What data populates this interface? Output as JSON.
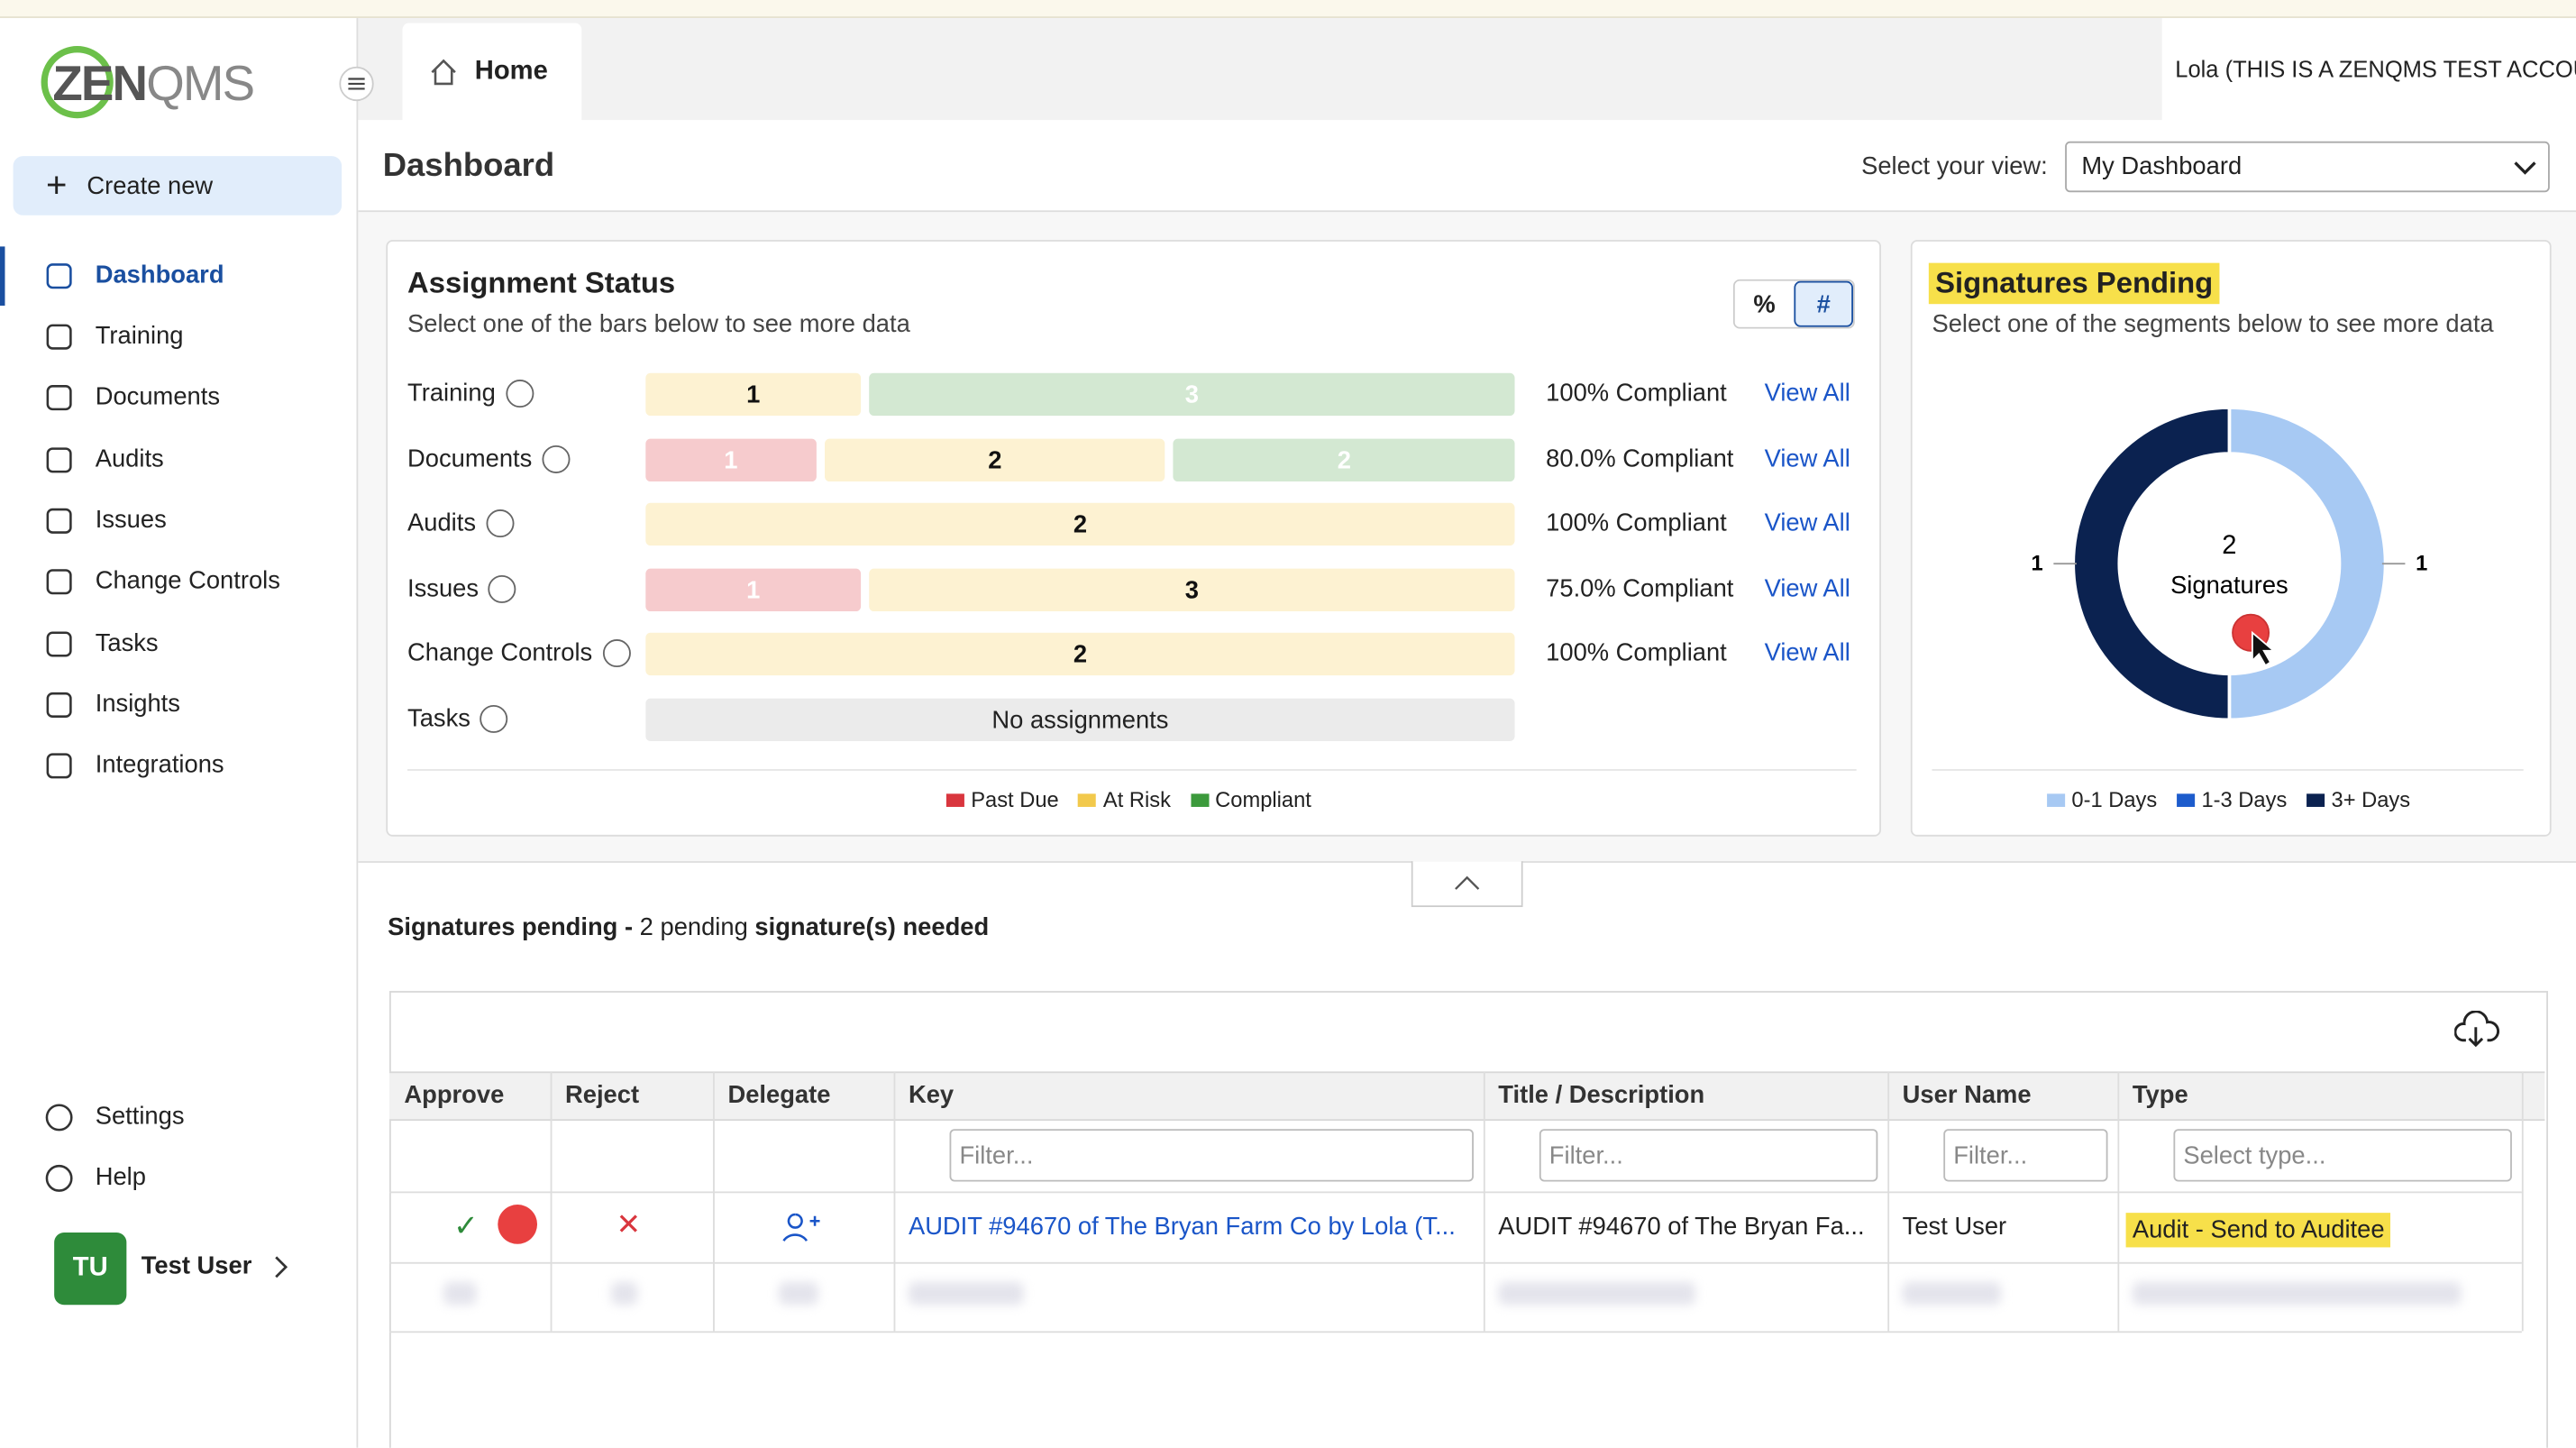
{
  "header": {
    "logo_left": "ZEN",
    "logo_right": "QMS",
    "tab": "Home",
    "account": "Lola (THIS IS A ZENQMS TEST ACCOUNT)"
  },
  "sidebar": {
    "create": "Create new",
    "nav": [
      "Dashboard",
      "Training",
      "Documents",
      "Audits",
      "Issues",
      "Change Controls",
      "Tasks",
      "Insights",
      "Integrations"
    ],
    "active": 0,
    "footer": [
      "Settings",
      "Help"
    ],
    "user": {
      "initials": "TU",
      "name": "Test User"
    }
  },
  "page": {
    "title": "Dashboard",
    "view_label": "Select your view:",
    "view": "My Dashboard"
  },
  "assignment_status": {
    "title": "Assignment Status",
    "subtitle": "Select one of the bars below to see more data",
    "toggle": [
      "%",
      "#"
    ],
    "toggle_active": 1,
    "link": "View All",
    "legend": [
      {
        "name": "Past Due",
        "color": "#d9363e",
        "fill": "#f6cbcd",
        "text": "#ffffff"
      },
      {
        "name": "At Risk",
        "color": "#f2c94c",
        "fill": "#fdf2d2",
        "text": "#111111"
      },
      {
        "name": "Compliant",
        "color": "#3c9a3c",
        "fill": "#d3e8d2",
        "text": "#ffffff"
      }
    ],
    "rows": [
      {
        "label": "Training",
        "counts": [
          null,
          1,
          3
        ],
        "compliance": "100% Compliant"
      },
      {
        "label": "Documents",
        "counts": [
          1,
          2,
          2
        ],
        "compliance": "80.0% Compliant"
      },
      {
        "label": "Audits",
        "counts": [
          null,
          2,
          null
        ],
        "compliance": "100% Compliant"
      },
      {
        "label": "Issues",
        "counts": [
          1,
          3,
          null
        ],
        "compliance": "75.0% Compliant"
      },
      {
        "label": "Change Controls",
        "counts": [
          null,
          2,
          null
        ],
        "compliance": "100% Compliant"
      },
      {
        "label": "Tasks",
        "empty": "No assignments"
      }
    ]
  },
  "signatures_card": {
    "title": "Signatures Pending",
    "subtitle": "Select one of the segments below to see more data",
    "center_value": 2,
    "center_label": "Signatures",
    "segments": [
      {
        "name": "0-1 Days",
        "value": 1,
        "color": "#a7c9f3"
      },
      {
        "name": "1-3 Days",
        "value": 0,
        "color": "#1d5ccc"
      },
      {
        "name": "3+ Days",
        "value": 1,
        "color": "#0b2250"
      }
    ]
  },
  "pending": {
    "label": "Signatures pending -",
    "count": "2 pending",
    "suffix": "signature(s) needed"
  },
  "table": {
    "columns": [
      "Approve",
      "Reject",
      "Delegate",
      "Key",
      "Title / Description",
      "User Name",
      "Type"
    ],
    "filters": [
      "Filter...",
      "Filter...",
      "Filter...",
      "Select type..."
    ],
    "rows": [
      [
        "AUDIT #94670 of The Bryan Farm Co by Lola (T...",
        "AUDIT #94670 of The Bryan Fa...",
        "Test User",
        "Audit - Send to Auditee"
      ]
    ]
  }
}
